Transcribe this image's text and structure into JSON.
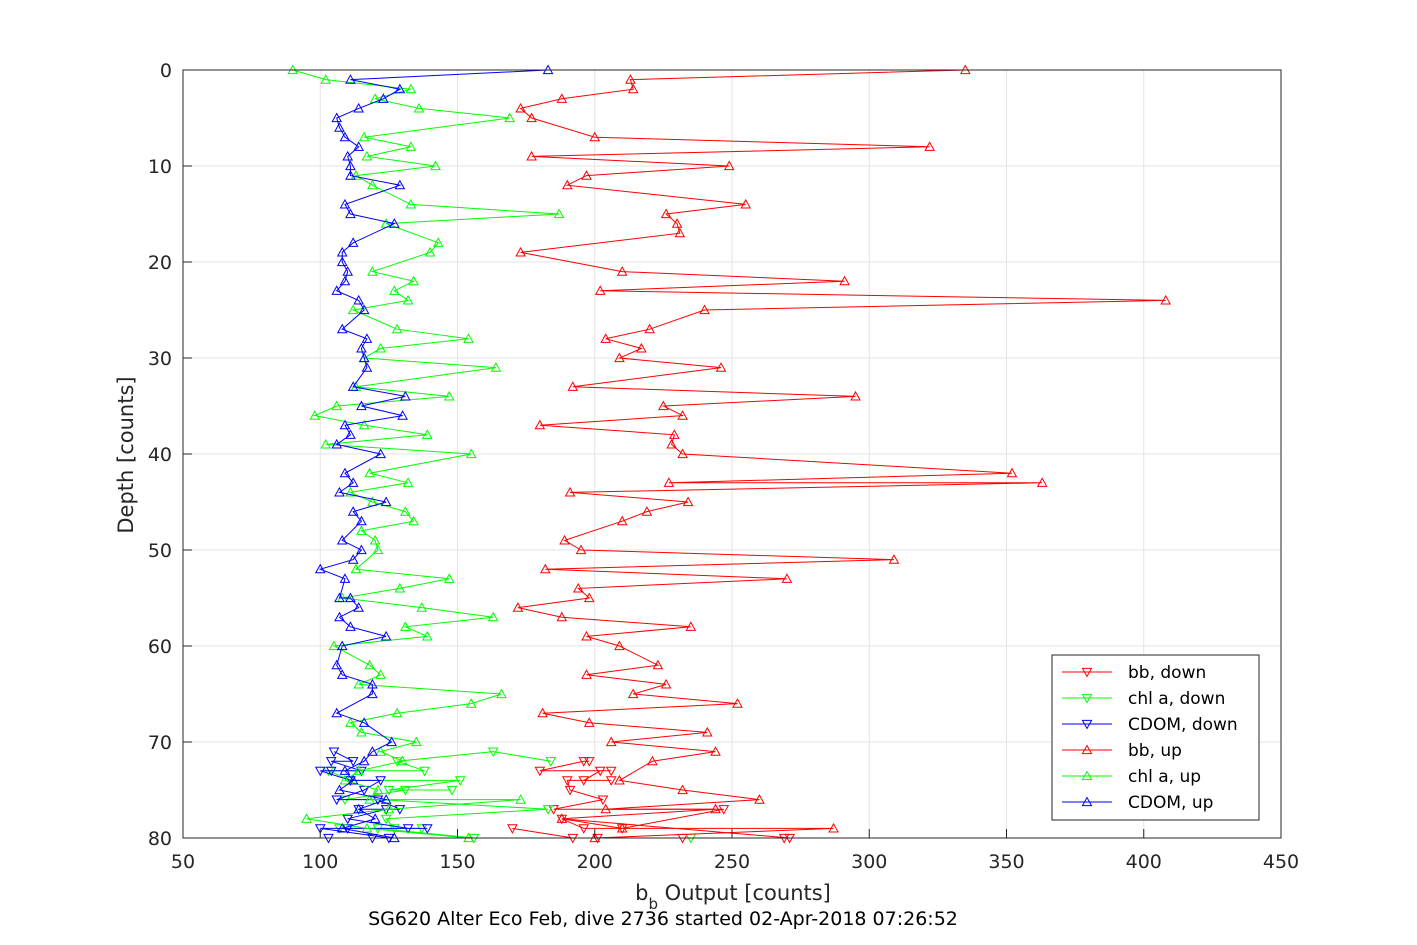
{
  "chart_data": {
    "type": "line",
    "xlabel_main": "b",
    "xlabel_sub": "b",
    "xlabel_rest": " Output [counts]",
    "ylabel": "Depth [counts]",
    "caption": "SG620 Alter Eco Feb, dive 2736 started 02-Apr-2018 07:26:52",
    "xlim": [
      50,
      450
    ],
    "ylim": [
      0,
      80
    ],
    "y_reversed": true,
    "grid": true,
    "legend_position": "bottom-right",
    "x_ticks": [
      "50",
      "100",
      "150",
      "200",
      "250",
      "300",
      "350",
      "400",
      "450"
    ],
    "y_ticks": [
      "0",
      "10",
      "20",
      "30",
      "40",
      "50",
      "60",
      "70",
      "80"
    ],
    "colors": {
      "red": "#ff0000",
      "green": "#00ff00",
      "blue": "#0000ff"
    },
    "series": [
      {
        "name": "bb, down",
        "color": "#ff0000",
        "marker": "triangle-down",
        "points": [
          [
            170,
            79
          ],
          [
            192,
            80
          ],
          [
            201,
            80
          ],
          [
            232,
            80
          ],
          [
            269,
            80
          ],
          [
            271,
            80
          ],
          [
            188,
            78
          ],
          [
            196,
            79
          ],
          [
            210,
            79
          ],
          [
            247,
            77
          ],
          [
            185,
            77
          ],
          [
            203,
            76
          ],
          [
            191,
            75
          ],
          [
            190,
            74
          ],
          [
            206,
            74
          ],
          [
            196,
            74
          ],
          [
            202,
            73
          ],
          [
            206,
            73
          ],
          [
            180,
            73
          ],
          [
            196,
            72
          ],
          [
            198,
            72
          ]
        ]
      },
      {
        "name": "chl a, down",
        "color": "#00ff00",
        "marker": "triangle-down",
        "points": [
          [
            235,
            80
          ],
          [
            156,
            80
          ],
          [
            121,
            79
          ],
          [
            107,
            79
          ],
          [
            137,
            79
          ],
          [
            127,
            79
          ],
          [
            124,
            78
          ],
          [
            183,
            77
          ],
          [
            121,
            76
          ],
          [
            109,
            76
          ],
          [
            131,
            75
          ],
          [
            148,
            75
          ],
          [
            125,
            75
          ],
          [
            151,
            74
          ],
          [
            111,
            74
          ],
          [
            103,
            73
          ],
          [
            138,
            73
          ],
          [
            128,
            72
          ],
          [
            163,
            71
          ],
          [
            184,
            72
          ]
        ]
      },
      {
        "name": "CDOM, down",
        "color": "#0000ff",
        "marker": "triangle-down",
        "points": [
          [
            119,
            80
          ],
          [
            103,
            80
          ],
          [
            125,
            80
          ],
          [
            100,
            79
          ],
          [
            110,
            79
          ],
          [
            139,
            79
          ],
          [
            132,
            79
          ],
          [
            110,
            78
          ],
          [
            124,
            77
          ],
          [
            114,
            77
          ],
          [
            129,
            77
          ],
          [
            121,
            76
          ],
          [
            106,
            76
          ],
          [
            116,
            75
          ],
          [
            122,
            74
          ],
          [
            111,
            74
          ],
          [
            100,
            73
          ],
          [
            104,
            73
          ],
          [
            115,
            73
          ],
          [
            104,
            72
          ],
          [
            112,
            72
          ],
          [
            105,
            71
          ]
        ]
      },
      {
        "name": "bb, up",
        "color": "#ff0000",
        "marker": "triangle-up",
        "points": [
          [
            335,
            0
          ],
          [
            213,
            1
          ],
          [
            214,
            2
          ],
          [
            188,
            3
          ],
          [
            173,
            4
          ],
          [
            177,
            5
          ],
          [
            200,
            7
          ],
          [
            322,
            8
          ],
          [
            177,
            9
          ],
          [
            249,
            10
          ],
          [
            197,
            11
          ],
          [
            190,
            12
          ],
          [
            255,
            14
          ],
          [
            226,
            15
          ],
          [
            230,
            16
          ],
          [
            231,
            17
          ],
          [
            173,
            19
          ],
          [
            210,
            21
          ],
          [
            291,
            22
          ],
          [
            202,
            23
          ],
          [
            408,
            24
          ],
          [
            240,
            25
          ],
          [
            220,
            27
          ],
          [
            204,
            28
          ],
          [
            217,
            29
          ],
          [
            209,
            30
          ],
          [
            246,
            31
          ],
          [
            192,
            33
          ],
          [
            295,
            34
          ],
          [
            225,
            35
          ],
          [
            232,
            36
          ],
          [
            180,
            37
          ],
          [
            229,
            38
          ],
          [
            228,
            39
          ],
          [
            232,
            40
          ],
          [
            352,
            42
          ],
          [
            227,
            43
          ],
          [
            363,
            43
          ],
          [
            191,
            44
          ],
          [
            234,
            45
          ],
          [
            219,
            46
          ],
          [
            210,
            47
          ],
          [
            189,
            49
          ],
          [
            195,
            50
          ],
          [
            309,
            51
          ],
          [
            182,
            52
          ],
          [
            270,
            53
          ],
          [
            194,
            54
          ],
          [
            198,
            55
          ],
          [
            172,
            56
          ],
          [
            188,
            57
          ],
          [
            235,
            58
          ],
          [
            197,
            59
          ],
          [
            209,
            60
          ],
          [
            223,
            62
          ],
          [
            197,
            63
          ],
          [
            226,
            64
          ],
          [
            214,
            65
          ],
          [
            252,
            66
          ],
          [
            181,
            67
          ],
          [
            198,
            68
          ],
          [
            241,
            69
          ],
          [
            206,
            70
          ],
          [
            244,
            71
          ],
          [
            221,
            72
          ],
          [
            209,
            74
          ],
          [
            232,
            75
          ],
          [
            260,
            76
          ],
          [
            204,
            77
          ],
          [
            244,
            77
          ],
          [
            188,
            78
          ],
          [
            210,
            79
          ],
          [
            287,
            79
          ],
          [
            200,
            80
          ]
        ]
      },
      {
        "name": "chl a, up",
        "color": "#00ff00",
        "marker": "triangle-up",
        "points": [
          [
            90,
            0
          ],
          [
            102,
            1
          ],
          [
            133,
            2
          ],
          [
            120,
            3
          ],
          [
            136,
            4
          ],
          [
            169,
            5
          ],
          [
            116,
            7
          ],
          [
            133,
            8
          ],
          [
            117,
            9
          ],
          [
            142,
            10
          ],
          [
            113,
            11
          ],
          [
            119,
            12
          ],
          [
            133,
            14
          ],
          [
            187,
            15
          ],
          [
            124,
            16
          ],
          [
            143,
            18
          ],
          [
            140,
            19
          ],
          [
            119,
            21
          ],
          [
            134,
            22
          ],
          [
            127,
            23
          ],
          [
            132,
            24
          ],
          [
            112,
            25
          ],
          [
            128,
            27
          ],
          [
            154,
            28
          ],
          [
            122,
            29
          ],
          [
            116,
            30
          ],
          [
            164,
            31
          ],
          [
            113,
            33
          ],
          [
            147,
            34
          ],
          [
            106,
            35
          ],
          [
            98,
            36
          ],
          [
            116,
            37
          ],
          [
            139,
            38
          ],
          [
            102,
            39
          ],
          [
            155,
            40
          ],
          [
            118,
            42
          ],
          [
            132,
            43
          ],
          [
            111,
            44
          ],
          [
            119,
            45
          ],
          [
            131,
            46
          ],
          [
            134,
            47
          ],
          [
            115,
            48
          ],
          [
            120,
            49
          ],
          [
            121,
            50
          ],
          [
            113,
            52
          ],
          [
            147,
            53
          ],
          [
            129,
            54
          ],
          [
            108,
            55
          ],
          [
            137,
            56
          ],
          [
            163,
            57
          ],
          [
            131,
            58
          ],
          [
            139,
            59
          ],
          [
            105,
            60
          ],
          [
            118,
            62
          ],
          [
            122,
            63
          ],
          [
            114,
            64
          ],
          [
            166,
            65
          ],
          [
            155,
            66
          ],
          [
            128,
            67
          ],
          [
            111,
            68
          ],
          [
            115,
            69
          ],
          [
            135,
            70
          ],
          [
            122,
            71
          ],
          [
            130,
            72
          ],
          [
            114,
            73
          ],
          [
            109,
            74
          ],
          [
            121,
            75
          ],
          [
            118,
            76
          ],
          [
            173,
            76
          ],
          [
            125,
            77
          ],
          [
            95,
            78
          ],
          [
            117,
            79
          ],
          [
            154,
            80
          ]
        ]
      },
      {
        "name": "CDOM, up",
        "color": "#0000ff",
        "marker": "triangle-up",
        "points": [
          [
            183,
            0
          ],
          [
            111,
            1
          ],
          [
            129,
            2
          ],
          [
            123,
            3
          ],
          [
            114,
            4
          ],
          [
            106,
            5
          ],
          [
            107,
            6
          ],
          [
            109,
            7
          ],
          [
            114,
            8
          ],
          [
            110,
            9
          ],
          [
            111,
            10
          ],
          [
            111,
            11
          ],
          [
            129,
            12
          ],
          [
            109,
            14
          ],
          [
            111,
            15
          ],
          [
            127,
            16
          ],
          [
            112,
            18
          ],
          [
            108,
            19
          ],
          [
            108,
            20
          ],
          [
            110,
            21
          ],
          [
            109,
            22
          ],
          [
            106,
            23
          ],
          [
            114,
            24
          ],
          [
            116,
            25
          ],
          [
            108,
            27
          ],
          [
            117,
            28
          ],
          [
            115,
            29
          ],
          [
            116,
            30
          ],
          [
            117,
            31
          ],
          [
            112,
            33
          ],
          [
            131,
            34
          ],
          [
            115,
            35
          ],
          [
            130,
            36
          ],
          [
            109,
            37
          ],
          [
            111,
            38
          ],
          [
            106,
            39
          ],
          [
            122,
            40
          ],
          [
            109,
            42
          ],
          [
            112,
            43
          ],
          [
            107,
            44
          ],
          [
            124,
            45
          ],
          [
            112,
            46
          ],
          [
            115,
            47
          ],
          [
            108,
            49
          ],
          [
            115,
            50
          ],
          [
            112,
            51
          ],
          [
            100,
            52
          ],
          [
            109,
            53
          ],
          [
            107,
            55
          ],
          [
            111,
            55
          ],
          [
            114,
            56
          ],
          [
            107,
            57
          ],
          [
            111,
            58
          ],
          [
            124,
            59
          ],
          [
            108,
            60
          ],
          [
            106,
            62
          ],
          [
            108,
            63
          ],
          [
            119,
            64
          ],
          [
            119,
            65
          ],
          [
            106,
            67
          ],
          [
            116,
            68
          ],
          [
            126,
            70
          ],
          [
            119,
            71
          ],
          [
            116,
            72
          ],
          [
            109,
            73
          ],
          [
            112,
            74
          ],
          [
            107,
            75
          ],
          [
            124,
            76
          ],
          [
            114,
            77
          ],
          [
            120,
            78
          ],
          [
            108,
            79
          ],
          [
            127,
            80
          ]
        ]
      }
    ]
  }
}
